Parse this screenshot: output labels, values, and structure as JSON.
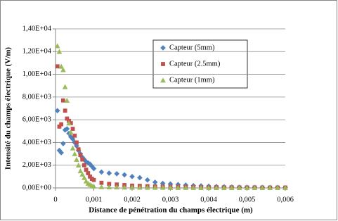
{
  "chart_data": {
    "type": "scatter",
    "x_label": "Distance de pénétration du champs électrique (m)",
    "y_label": "Intensité du champs électrique (V/m)",
    "x": [
      5e-05,
      0.0001,
      0.00015,
      0.0002,
      0.00025,
      0.0003,
      0.00035,
      0.0004,
      0.00045,
      0.0005,
      0.00055,
      0.0006,
      0.00065,
      0.0007,
      0.00075,
      0.0008,
      0.00085,
      0.0009,
      0.00095,
      0.001,
      0.0012,
      0.0014,
      0.0016,
      0.0018,
      0.002,
      0.0022,
      0.0024,
      0.0026,
      0.0028,
      0.003,
      0.0032,
      0.0034,
      0.0036,
      0.0038,
      0.004,
      0.0042,
      0.0044,
      0.0046,
      0.0048,
      0.005,
      0.0052,
      0.0054,
      0.0056,
      0.0058,
      0.006
    ],
    "series": [
      {
        "name": "Capteur (5mm)",
        "color": "#4f81bd",
        "marker": "diamond",
        "values": [
          6800,
          3300,
          3100,
          3900,
          5100,
          5200,
          4800,
          4500,
          4300,
          4000,
          3700,
          3300,
          3000,
          2700,
          2500,
          2300,
          2200,
          2100,
          1900,
          1700,
          1400,
          1300,
          1250,
          1150,
          1000,
          900,
          700,
          500,
          400,
          350,
          300,
          250,
          200,
          180,
          150,
          120,
          100,
          80,
          70,
          60,
          50,
          50,
          40,
          40,
          30
        ]
      },
      {
        "name": "Capteur (2.5mm)",
        "color": "#c0504d",
        "marker": "square",
        "values": [
          10700,
          5400,
          5600,
          7700,
          6800,
          6100,
          5900,
          5700,
          5200,
          4600,
          4000,
          3400,
          2900,
          2500,
          2000,
          1600,
          1300,
          1000,
          800,
          700,
          450,
          350,
          300,
          250,
          200,
          180,
          150,
          130,
          120,
          100,
          100,
          90,
          80,
          70,
          60,
          60,
          50,
          50,
          40,
          40,
          40,
          30,
          30,
          30,
          30
        ]
      },
      {
        "name": "Capteur (1mm)",
        "color": "#9bbb59",
        "marker": "triangle",
        "values": [
          12500,
          12000,
          10700,
          10400,
          8900,
          7700,
          5700,
          4900,
          3500,
          3000,
          2500,
          2000,
          1500,
          1200,
          900,
          600,
          400,
          300,
          200,
          150,
          100,
          80,
          70,
          60,
          50,
          50,
          40,
          40,
          40,
          30,
          30,
          30,
          30,
          20,
          20,
          20,
          20,
          20,
          20,
          20,
          20,
          20,
          20,
          20,
          20
        ]
      }
    ],
    "xlim": [
      0,
      0.006
    ],
    "xticks": [
      0,
      {
        "value": 0.001,
        "label": "0,001"
      },
      {
        "value": 0.002,
        "label": "0,002"
      },
      {
        "value": 0.003,
        "label": "0,003"
      },
      {
        "value": 0.004,
        "label": "0,004"
      },
      {
        "value": 0.005,
        "label": "0,005"
      },
      {
        "value": 0.006,
        "label": "0,006"
      }
    ],
    "ylim": [
      0,
      14000
    ],
    "yticks": [
      {
        "value": 0,
        "label": "0,00E+00"
      },
      {
        "value": 2000,
        "label": "2,00E+03"
      },
      {
        "value": 4000,
        "label": "4,00E+03"
      },
      {
        "value": 6000,
        "label": "6,00E+03"
      },
      {
        "value": 8000,
        "label": "8,00E+03"
      },
      {
        "value": 10000,
        "label": "1,00E+04"
      },
      {
        "value": 12000,
        "label": "1,20E+04"
      },
      {
        "value": 14000,
        "label": "1,40E+04"
      }
    ],
    "grid": true,
    "legend": "top-right"
  }
}
